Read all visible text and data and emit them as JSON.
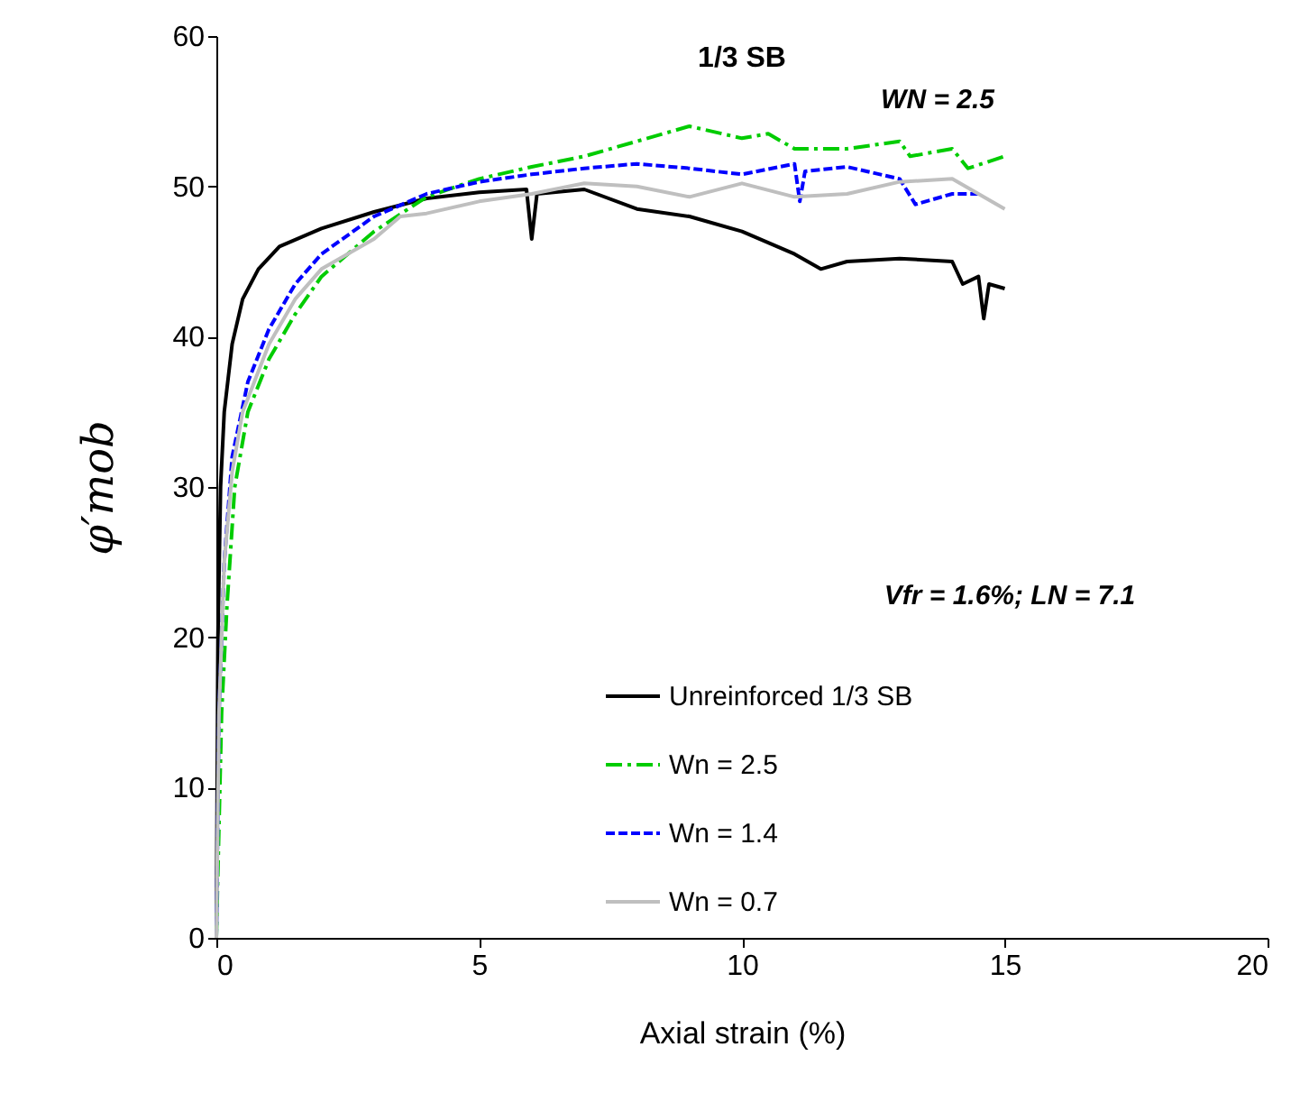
{
  "chart_data": {
    "type": "line",
    "title": "1/3 SB",
    "xlabel": "Axial strain (%)",
    "ylabel": "φ′mob",
    "xlim": [
      0,
      20
    ],
    "xticks": [
      0,
      5,
      10,
      15,
      20
    ],
    "ylim": [
      0,
      60
    ],
    "yticks": [
      0,
      10,
      20,
      30,
      40,
      50,
      60
    ],
    "grid": false,
    "legend": "bottom right",
    "marker": "none",
    "annotations": [
      "Vfr = 1.6%; LN = 7.1",
      "WN = 2.5"
    ],
    "series": [
      {
        "name": "Unreinforced 1/3 SB",
        "color": "#000000",
        "line_style": "solid",
        "x": [
          0,
          0.03,
          0.08,
          0.15,
          0.3,
          0.5,
          0.8,
          1.2,
          2,
          3,
          4,
          5,
          5.9,
          6.0,
          6.1,
          7,
          8,
          9,
          10,
          11,
          11.5,
          12,
          13,
          14,
          14.2,
          14.5,
          14.6,
          14.7,
          15
        ],
        "values": [
          0,
          20,
          30,
          35,
          39.5,
          42.5,
          44.5,
          46,
          47.2,
          48.3,
          49.2,
          49.6,
          49.8,
          46.5,
          49.5,
          49.8,
          48.5,
          48,
          47,
          45.5,
          44.5,
          45,
          45.2,
          45,
          43.5,
          44,
          41.2,
          43.5,
          43.2
        ]
      },
      {
        "name": "Wn = 2.5",
        "color": "#00cc00",
        "line_style": "dashdot",
        "x": [
          0,
          0.1,
          0.2,
          0.35,
          0.6,
          1,
          1.5,
          2,
          3,
          4,
          5,
          6,
          7,
          8,
          9,
          10,
          10.5,
          11,
          12,
          13,
          13.2,
          14,
          14.3,
          15
        ],
        "values": [
          0,
          15,
          22,
          30,
          35,
          38.5,
          41.5,
          44,
          47,
          49.3,
          50.5,
          51.3,
          52,
          53,
          54,
          53.2,
          53.5,
          52.5,
          52.5,
          53,
          52,
          52.5,
          51.2,
          52
        ]
      },
      {
        "name": "Wn = 1.4",
        "color": "#0000ff",
        "line_style": "dashed",
        "x": [
          0,
          0.05,
          0.15,
          0.3,
          0.6,
          1,
          1.5,
          2,
          3,
          4,
          5,
          6,
          7,
          8,
          9,
          10,
          11,
          11.1,
          11.2,
          12,
          13,
          13.3,
          14,
          14.5
        ],
        "values": [
          0,
          15,
          25,
          32,
          37,
          40.5,
          43.5,
          45.5,
          48,
          49.5,
          50.3,
          50.8,
          51.2,
          51.5,
          51.2,
          50.8,
          51.5,
          49,
          51,
          51.3,
          50.5,
          48.8,
          49.5,
          49.5
        ]
      },
      {
        "name": "Wn = 0.7",
        "color": "#bfbfbf",
        "line_style": "solid",
        "x": [
          0,
          0.05,
          0.15,
          0.3,
          0.5,
          1,
          1.5,
          2,
          3,
          3.5,
          4,
          5,
          6,
          7,
          8,
          9,
          10,
          11,
          12,
          13,
          14,
          14.5,
          15
        ],
        "values": [
          0,
          15,
          25,
          31,
          35,
          39.5,
          42.5,
          44.5,
          46.5,
          48,
          48.2,
          49,
          49.5,
          50.2,
          50,
          49.3,
          50.2,
          49.3,
          49.5,
          50.3,
          50.5,
          49.5,
          48.5
        ]
      }
    ]
  }
}
